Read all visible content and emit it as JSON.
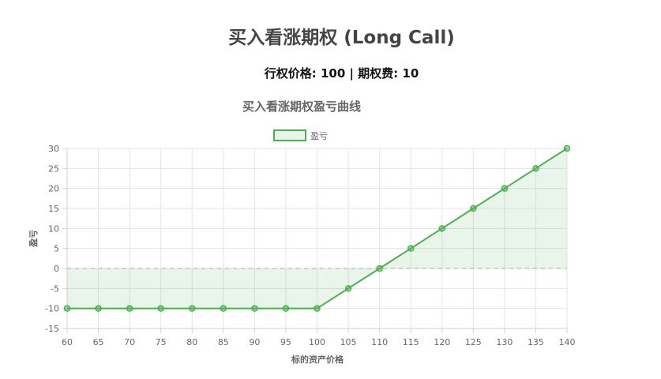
{
  "header": {
    "title": "买入看涨期权 (Long Call)",
    "subtitle": "行权价格: 100 | 期权费: 10"
  },
  "chart_data": {
    "type": "line",
    "title": "买入看涨期权盈亏曲线",
    "x": [
      60,
      65,
      70,
      75,
      80,
      85,
      90,
      95,
      100,
      105,
      110,
      115,
      120,
      125,
      130,
      135,
      140
    ],
    "series": [
      {
        "name": "盈亏",
        "values": [
          -10,
          -10,
          -10,
          -10,
          -10,
          -10,
          -10,
          -10,
          -10,
          -5,
          0,
          5,
          10,
          15,
          20,
          25,
          30
        ],
        "color": "#4caf50",
        "fill": "rgba(76,175,80,0.12)"
      }
    ],
    "xlabel": "标的资产价格",
    "ylabel": "盈亏",
    "xlim": [
      60,
      140
    ],
    "ylim": [
      -15,
      30
    ],
    "yticks": [
      -15,
      -10,
      -5,
      0,
      5,
      10,
      15,
      20,
      25,
      30
    ],
    "grid": true,
    "zero_line": "dashed",
    "legend_position": "top"
  }
}
